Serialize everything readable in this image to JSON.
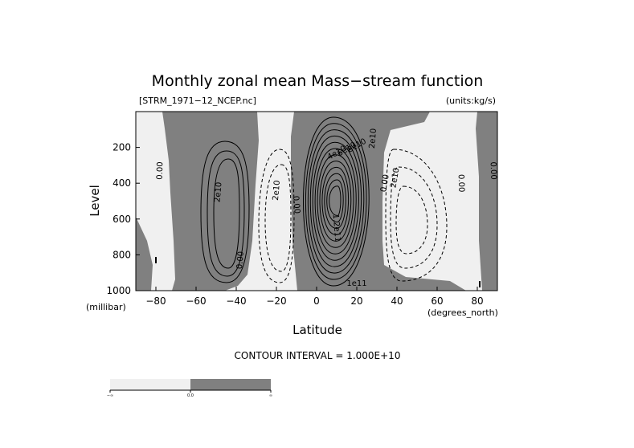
{
  "chart_data": {
    "type": "contour",
    "title": "Monthly zonal mean Mass−stream function",
    "subtitle_left": "[STRM_1971−12_NCEP.nc]",
    "subtitle_right": "(units:kg/s)",
    "xlabel": "Latitude",
    "xunit": "(degrees_north)",
    "ylabel": "Level",
    "yunit": "(millibar)",
    "xlim": [
      -90,
      90
    ],
    "ylim": [
      1000,
      0
    ],
    "x_ticks": [
      -80,
      -60,
      -40,
      -20,
      0,
      20,
      40,
      60,
      80
    ],
    "x_tick_labels": [
      "−80",
      "−60",
      "−40",
      "−20",
      "0",
      "20",
      "40",
      "60",
      "80"
    ],
    "y_ticks": [
      200,
      400,
      600,
      800,
      1000
    ],
    "y_tick_labels": [
      "200",
      "400",
      "600",
      "800",
      "1000"
    ],
    "contour_interval_text": "CONTOUR INTERVAL = 1.000E+10",
    "contour_interval": 10000000000.0,
    "positive_fill": "#808080",
    "negative_fill": "#f0f0f0",
    "cells": [
      {
        "sign": "positive",
        "lat": -45,
        "level": 600,
        "peak": 60000000000.0
      },
      {
        "sign": "negative",
        "lat": -20,
        "level": 600,
        "peak": -40000000000.0
      },
      {
        "sign": "positive",
        "lat": 13,
        "level": 560,
        "peak": 140000000000.0
      },
      {
        "sign": "negative",
        "lat": 48,
        "level": 560,
        "peak": -40000000000.0
      }
    ],
    "contour_labels": [
      {
        "text": "2e10",
        "lat": -49,
        "level": 450,
        "rotate": -85
      },
      {
        "text": "2e10",
        "lat": -20,
        "level": 440,
        "rotate": -85
      },
      {
        "text": "0.00",
        "lat": -38,
        "level": 830,
        "rotate": -85
      },
      {
        "text": "0.00",
        "lat": -78,
        "level": 330,
        "rotate": -88
      },
      {
        "text": "0.00",
        "lat": -10,
        "level": 520,
        "rotate": 85
      },
      {
        "text": "1.2e11",
        "lat": 10,
        "level": 650,
        "rotate": 85
      },
      {
        "text": "4e10",
        "lat": 10,
        "level": 230,
        "rotate": -30
      },
      {
        "text": "6e10",
        "lat": 15,
        "level": 210,
        "rotate": -30
      },
      {
        "text": "8e10",
        "lat": 20,
        "level": 190,
        "rotate": -30
      },
      {
        "text": "2e10",
        "lat": 28,
        "level": 150,
        "rotate": -85
      },
      {
        "text": "0.00",
        "lat": 34,
        "level": 400,
        "rotate": -80
      },
      {
        "text": "2e10",
        "lat": 39,
        "level": 370,
        "rotate": -80
      },
      {
        "text": "0.00",
        "lat": 72,
        "level": 400,
        "rotate": 88
      },
      {
        "text": "0.00",
        "lat": 88,
        "level": 330,
        "rotate": 88
      },
      {
        "text": "1e11",
        "lat": 20,
        "level": 960,
        "rotate": 0
      }
    ],
    "colorbar": {
      "labels": [
        "−∞",
        "0.0",
        "∞"
      ],
      "colors": [
        "#f0f0f0",
        "#808080"
      ]
    }
  }
}
